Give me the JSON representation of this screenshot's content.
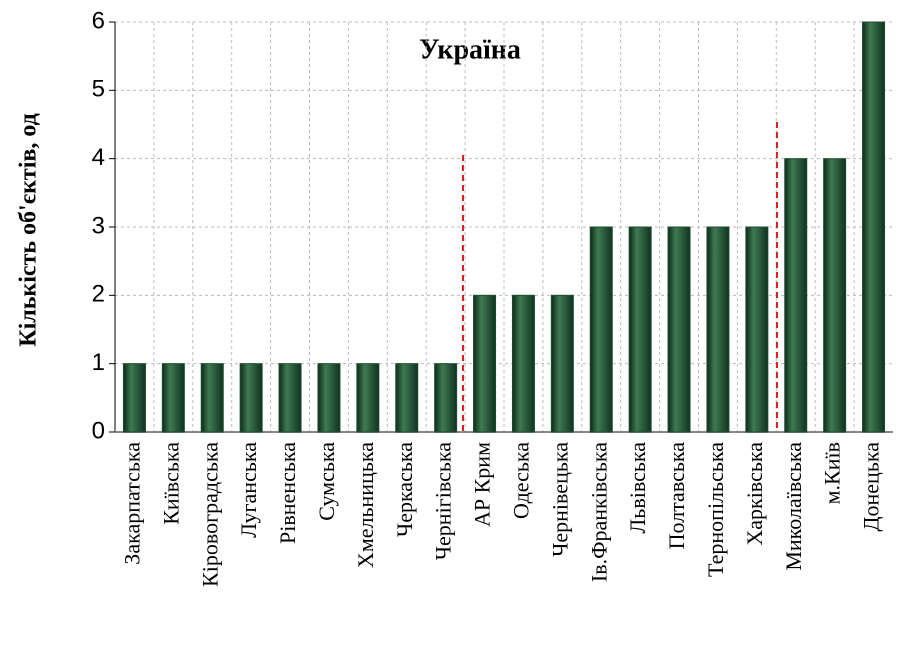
{
  "chart_data": {
    "type": "bar",
    "title": "Україна",
    "y_label": "Кількість об'єктів, од",
    "categories": [
      "Закарпатська",
      "Київська",
      "Кіровоградська",
      "Луганська",
      "Рівненська",
      "Сумська",
      "Хмельницька",
      "Черкаська",
      "Чернігівська",
      "АР Крим",
      "Одеська",
      "Чернівецька",
      "Ів.Франківська",
      "Львівська",
      "Полтавська",
      "Тернопільська",
      "Харківська",
      "Миколаївська",
      "м.Київ",
      "Донецька"
    ],
    "values": [
      1,
      1,
      1,
      1,
      1,
      1,
      1,
      1,
      1,
      2,
      2,
      2,
      3,
      3,
      3,
      3,
      3,
      4,
      4,
      6
    ],
    "color": "#1f4d2f",
    "ylim": [
      0,
      6
    ],
    "yticks": [
      0,
      1,
      2,
      3,
      4,
      5,
      6
    ],
    "grid": true
  }
}
